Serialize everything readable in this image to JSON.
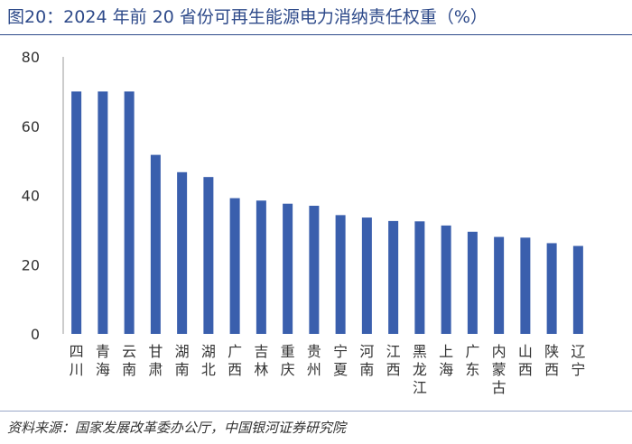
{
  "title": "图20：2024 年前 20 省份可再生能源电力消纳责任权重（%）",
  "source": "资料来源：国家发展改革委办公厅，中国银河证券研究院",
  "colors": {
    "bar": "#3a5fad",
    "axis": "#999999",
    "title": "#2e4a8a"
  },
  "chart_data": {
    "type": "bar",
    "title": "2024 年前 20 省份可再生能源电力消纳责任权重（%）",
    "xlabel": "",
    "ylabel": "",
    "ylim": [
      0,
      80
    ],
    "yticks": [
      0,
      20,
      40,
      60,
      80
    ],
    "grid": false,
    "categories": [
      "四川",
      "青海",
      "云南",
      "甘肃",
      "湖南",
      "湖北",
      "广西",
      "吉林",
      "重庆",
      "贵州",
      "宁夏",
      "河南",
      "江西",
      "黑龙江",
      "上海",
      "广东",
      "内蒙古",
      "山西",
      "陕西",
      "辽宁"
    ],
    "values": [
      70.0,
      70.0,
      70.0,
      51.7,
      46.7,
      45.3,
      39.2,
      38.5,
      37.6,
      37.0,
      34.3,
      33.6,
      32.6,
      32.5,
      31.3,
      29.5,
      28.0,
      27.8,
      26.2,
      25.4
    ]
  }
}
